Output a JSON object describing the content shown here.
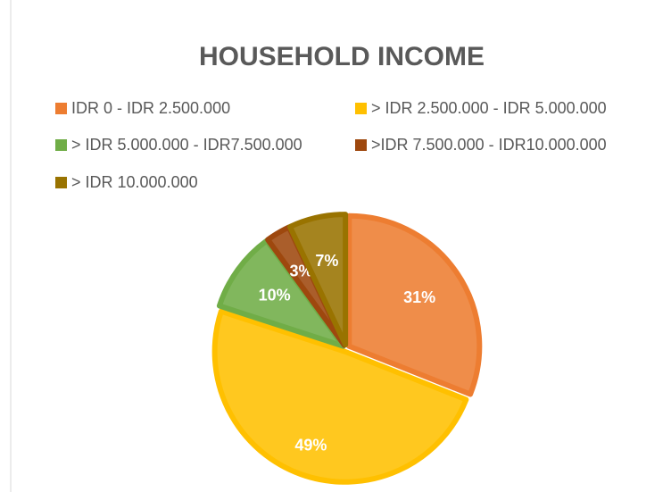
{
  "chart_data": {
    "type": "pie",
    "title": "HOUSEHOLD INCOME",
    "categories": [
      "IDR 0 - IDR 2.500.000",
      "> IDR 2.500.000 - IDR 5.000.000",
      "> IDR 5.000.000 - IDR7.500.000",
      ">IDR 7.500.000 - IDR10.000.000",
      "> IDR 10.000.000"
    ],
    "values": [
      31,
      49,
      10,
      3,
      7
    ],
    "value_labels": [
      "31%",
      "49%",
      "10%",
      "3%",
      "7%"
    ],
    "colors": [
      "#ED7D31",
      "#FFC000",
      "#70AD47",
      "#9E480E",
      "#997300"
    ],
    "legend": "top"
  }
}
